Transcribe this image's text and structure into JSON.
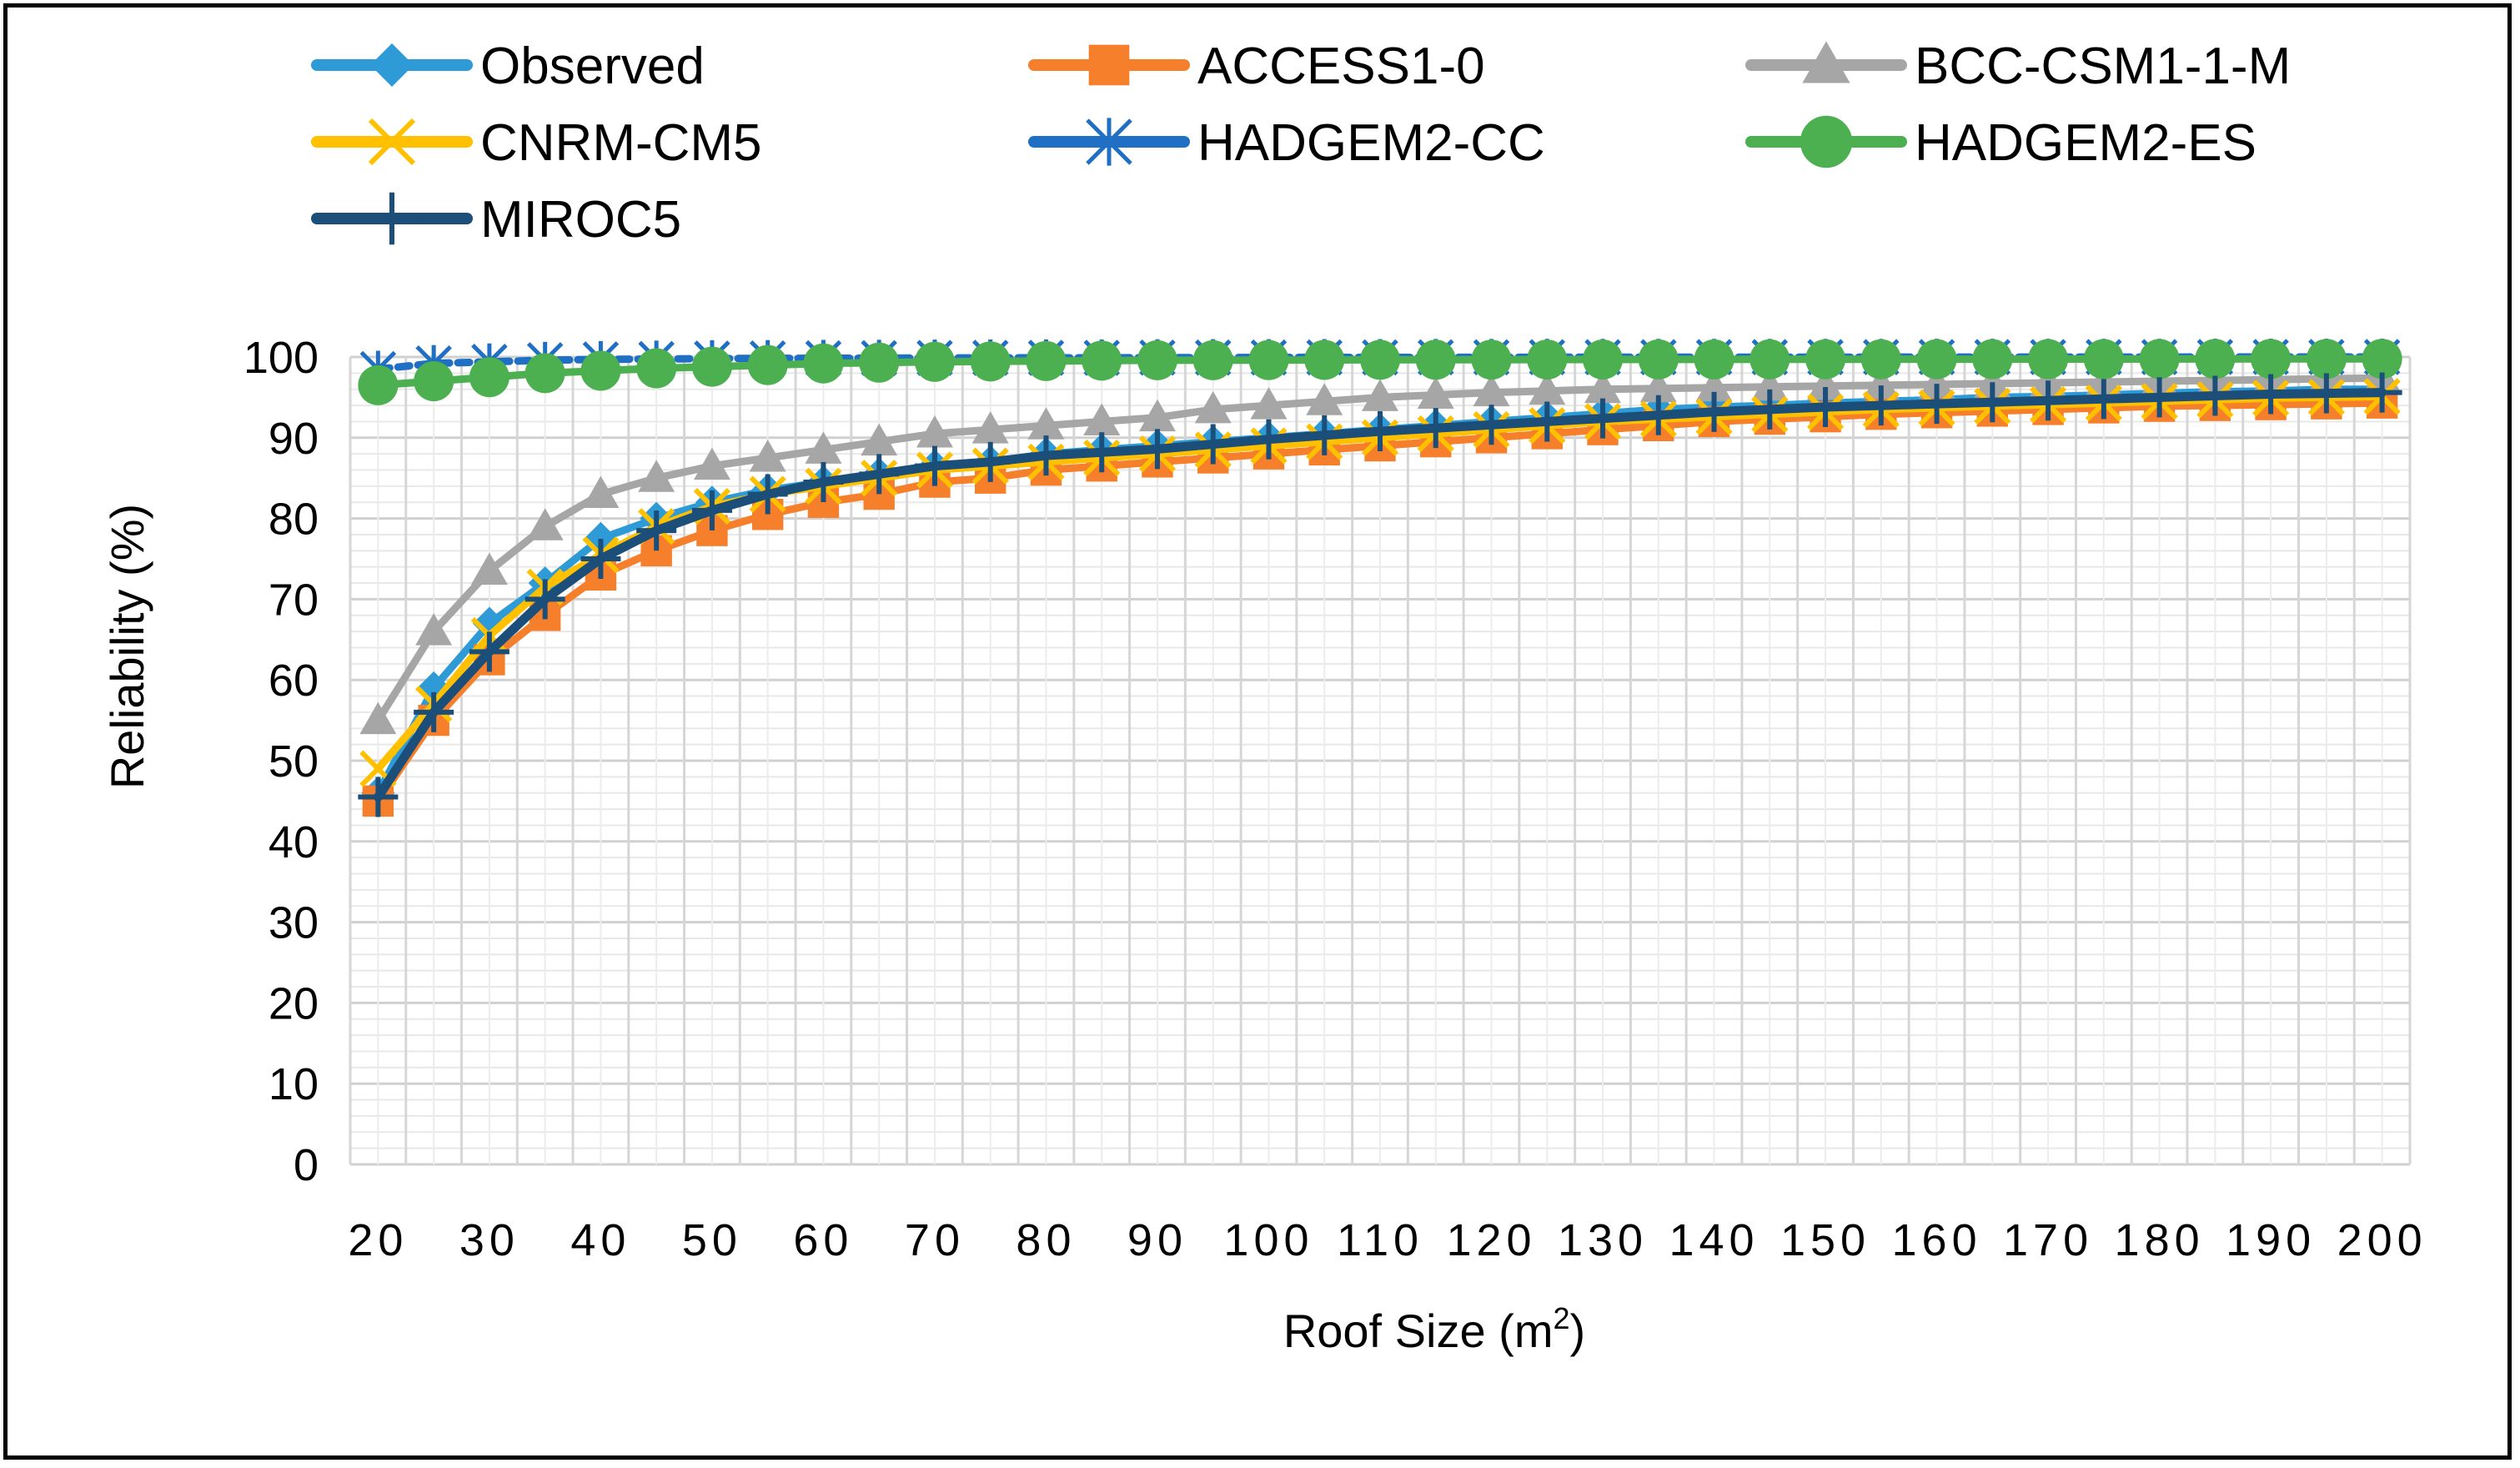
{
  "chart_data": {
    "type": "line",
    "title": "",
    "xlabel": "Roof Size (m",
    "xlabel_sup": "2",
    "xlabel_close": ")",
    "ylabel": "Reliability (%)",
    "ylim": [
      0,
      100
    ],
    "yticks": [
      0,
      10,
      20,
      30,
      40,
      50,
      60,
      70,
      80,
      90,
      100
    ],
    "grid": true,
    "legend_position": "top",
    "x": [
      20,
      25,
      30,
      35,
      40,
      45,
      50,
      55,
      60,
      65,
      70,
      75,
      80,
      85,
      90,
      95,
      100,
      105,
      110,
      115,
      120,
      125,
      130,
      135,
      140,
      145,
      150,
      155,
      160,
      165,
      170,
      175,
      180,
      185,
      190,
      195,
      200
    ],
    "x_tick_labels": [
      "20",
      "30",
      "40",
      "50",
      "60",
      "70",
      "80",
      "90",
      "100",
      "110",
      "120",
      "130",
      "140",
      "150",
      "160",
      "170",
      "180",
      "190",
      "200"
    ],
    "series": [
      {
        "name": "Observed",
        "color": "#2e9bd6",
        "marker": "diamond",
        "values": [
          46,
          59,
          67,
          72,
          77.5,
          80,
          82,
          83.5,
          84.5,
          85.5,
          86.5,
          87,
          88,
          88.5,
          89,
          89.5,
          90,
          90.5,
          91,
          91.5,
          92,
          92.5,
          93,
          93.5,
          93.8,
          94,
          94.3,
          94.5,
          94.7,
          95,
          95.1,
          95.3,
          95.5,
          95.7,
          95.8,
          96,
          96
        ]
      },
      {
        "name": "ACCESS1-0",
        "color": "#f57f2a",
        "marker": "square",
        "values": [
          45,
          55,
          62.5,
          68,
          73,
          76,
          78.5,
          80.5,
          82,
          83,
          84.5,
          85,
          86,
          86.5,
          87,
          87.5,
          88,
          88.5,
          89,
          89.5,
          90,
          90.5,
          91,
          91.5,
          92,
          92.3,
          92.6,
          92.9,
          93.1,
          93.3,
          93.5,
          93.7,
          93.9,
          94,
          94.1,
          94.2,
          94.3
        ]
      },
      {
        "name": "BCC-CSM1-1-M",
        "color": "#a6a6a6",
        "marker": "triangle",
        "values": [
          55,
          66,
          73.5,
          79,
          83,
          85,
          86.5,
          87.5,
          88.5,
          89.5,
          90.5,
          91,
          91.5,
          92,
          92.5,
          93.5,
          94,
          94.5,
          95,
          95.3,
          95.6,
          95.8,
          96,
          96.1,
          96.2,
          96.3,
          96.4,
          96.5,
          96.6,
          96.7,
          96.8,
          96.9,
          97,
          97.1,
          97.2,
          97.3,
          97.4
        ]
      },
      {
        "name": "CNRM-CM5",
        "color": "#ffc000",
        "marker": "x",
        "values": [
          49,
          57,
          65.5,
          71.5,
          75.5,
          79,
          81.5,
          83,
          84,
          85,
          86,
          86.5,
          87,
          87.5,
          88,
          88.5,
          89,
          89.5,
          90,
          90.5,
          91,
          91.5,
          92,
          92.3,
          92.6,
          92.9,
          93.2,
          93.5,
          93.7,
          93.9,
          94.1,
          94.3,
          94.5,
          94.7,
          94.9,
          95,
          95.1
        ]
      },
      {
        "name": "HADGEM2-CC",
        "color": "#1f6fc5",
        "marker": "star",
        "values": [
          98.5,
          99.2,
          99.4,
          99.6,
          99.7,
          99.75,
          99.8,
          99.82,
          99.84,
          99.86,
          99.88,
          99.9,
          99.9,
          99.9,
          99.92,
          99.93,
          99.94,
          99.95,
          99.95,
          99.96,
          99.96,
          99.97,
          99.97,
          99.97,
          99.98,
          99.98,
          99.98,
          99.98,
          99.99,
          99.99,
          99.99,
          99.99,
          99.99,
          100,
          100,
          100,
          100
        ]
      },
      {
        "name": "HADGEM2-ES",
        "color": "#4caf50",
        "marker": "circle",
        "values": [
          96.5,
          97,
          97.5,
          98,
          98.3,
          98.6,
          98.8,
          99,
          99.2,
          99.3,
          99.4,
          99.45,
          99.5,
          99.55,
          99.6,
          99.6,
          99.62,
          99.64,
          99.65,
          99.66,
          99.67,
          99.68,
          99.69,
          99.7,
          99.7,
          99.71,
          99.72,
          99.72,
          99.73,
          99.73,
          99.74,
          99.74,
          99.75,
          99.75,
          99.76,
          99.76,
          99.77
        ]
      },
      {
        "name": "MIROC5",
        "color": "#1b4f7a",
        "marker": "plus",
        "values": [
          45.5,
          56,
          63.5,
          70,
          75,
          78.5,
          81,
          83,
          84.5,
          85.5,
          86.5,
          87,
          87.8,
          88.2,
          88.6,
          89.2,
          89.8,
          90.3,
          90.8,
          91.2,
          91.6,
          92,
          92.4,
          92.8,
          93.2,
          93.5,
          93.8,
          94,
          94.2,
          94.4,
          94.6,
          94.8,
          95,
          95.2,
          95.4,
          95.5,
          95.6
        ]
      }
    ]
  }
}
